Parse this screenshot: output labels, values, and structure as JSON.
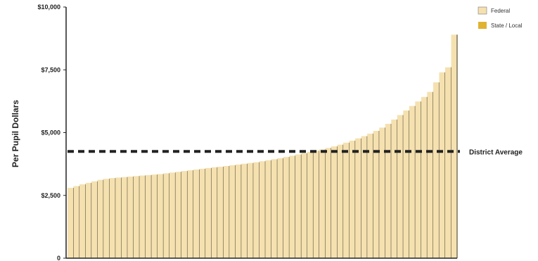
{
  "chart_data": {
    "type": "area",
    "title": "",
    "xlabel": "",
    "ylabel": "Per Pupil Dollars",
    "ylim": [
      0,
      10000
    ],
    "yticks": [
      {
        "value": 0,
        "label": "0"
      },
      {
        "value": 2500,
        "label": "$2,500"
      },
      {
        "value": 5000,
        "label": "$5,000"
      },
      {
        "value": 7500,
        "label": "$7,500"
      },
      {
        "value": 10000,
        "label": "$10,000"
      }
    ],
    "grid": false,
    "legend_position": "top-right",
    "series": [
      {
        "name": "Federal",
        "color": "#f5e1b0",
        "values": [
          2800,
          2870,
          2940,
          3000,
          3060,
          3120,
          3160,
          3190,
          3210,
          3230,
          3250,
          3270,
          3290,
          3310,
          3330,
          3350,
          3380,
          3410,
          3440,
          3470,
          3500,
          3530,
          3560,
          3590,
          3620,
          3640,
          3670,
          3700,
          3730,
          3760,
          3790,
          3820,
          3860,
          3900,
          3940,
          3980,
          4030,
          4080,
          4130,
          4180,
          4230,
          4280,
          4330,
          4390,
          4450,
          4520,
          4600,
          4680,
          4770,
          4860,
          4960,
          5070,
          5200,
          5350,
          5520,
          5700,
          5880,
          6060,
          6240,
          6420,
          6620,
          7000,
          7400,
          7600,
          8900
        ]
      },
      {
        "name": "State / Local",
        "color": "#e0b232",
        "values": []
      }
    ],
    "reference_line": {
      "label": "District Average",
      "value": 4250
    }
  }
}
